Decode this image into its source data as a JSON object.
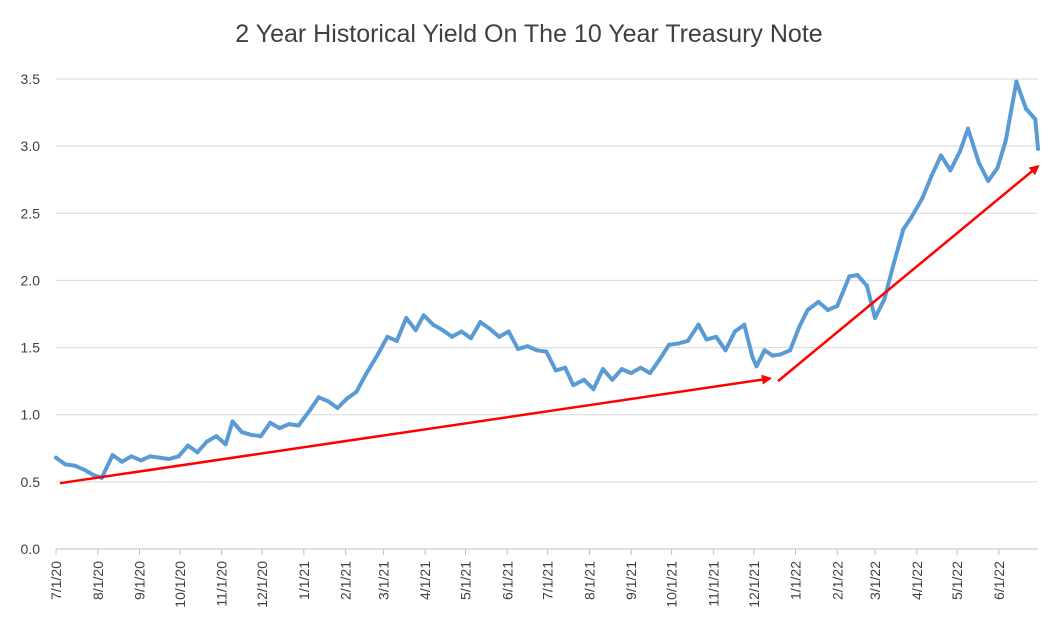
{
  "title": "2 Year Historical Yield On The 10 Year Treasury Note",
  "chart_data": {
    "type": "line",
    "title": "2 Year Historical Yield On The 10 Year Treasury Note",
    "xlabel": "",
    "ylabel": "",
    "ylim": [
      0,
      3.5
    ],
    "yticks": [
      "0.0",
      "0.5",
      "1.0",
      "1.5",
      "2.0",
      "2.5",
      "3.0",
      "3.5"
    ],
    "xticks": [
      "7/1/20",
      "8/1/20",
      "9/1/20",
      "10/1/20",
      "11/1/20",
      "12/1/20",
      "1/1/21",
      "2/1/21",
      "3/1/21",
      "4/1/21",
      "5/1/21",
      "6/1/21",
      "7/1/21",
      "8/1/21",
      "9/1/21",
      "10/1/21",
      "11/1/21",
      "12/1/21",
      "1/1/22",
      "2/1/22",
      "3/1/22",
      "4/1/22",
      "5/1/22",
      "6/1/22"
    ],
    "grid": true,
    "series": [
      {
        "color": "#5b9bd5",
        "x": [
          "2020-07-01",
          "2020-07-08",
          "2020-07-15",
          "2020-07-22",
          "2020-07-29",
          "2020-08-04",
          "2020-08-12",
          "2020-08-19",
          "2020-08-26",
          "2020-09-02",
          "2020-09-09",
          "2020-09-16",
          "2020-09-23",
          "2020-09-30",
          "2020-10-07",
          "2020-10-14",
          "2020-10-21",
          "2020-10-28",
          "2020-11-04",
          "2020-11-09",
          "2020-11-16",
          "2020-11-23",
          "2020-11-30",
          "2020-12-07",
          "2020-12-14",
          "2020-12-21",
          "2020-12-28",
          "2021-01-06",
          "2021-01-12",
          "2021-01-19",
          "2021-01-26",
          "2021-02-02",
          "2021-02-09",
          "2021-02-16",
          "2021-02-25",
          "2021-03-04",
          "2021-03-11",
          "2021-03-18",
          "2021-03-25",
          "2021-03-31",
          "2021-04-07",
          "2021-04-14",
          "2021-04-21",
          "2021-04-28",
          "2021-05-05",
          "2021-05-12",
          "2021-05-19",
          "2021-05-26",
          "2021-06-02",
          "2021-06-09",
          "2021-06-16",
          "2021-06-23",
          "2021-06-30",
          "2021-07-07",
          "2021-07-14",
          "2021-07-20",
          "2021-07-28",
          "2021-08-04",
          "2021-08-11",
          "2021-08-18",
          "2021-08-25",
          "2021-09-01",
          "2021-09-08",
          "2021-09-15",
          "2021-09-22",
          "2021-09-29",
          "2021-10-06",
          "2021-10-13",
          "2021-10-21",
          "2021-10-27",
          "2021-11-03",
          "2021-11-10",
          "2021-11-17",
          "2021-11-24",
          "2021-11-30",
          "2021-12-03",
          "2021-12-09",
          "2021-12-15",
          "2021-12-21",
          "2021-12-28",
          "2022-01-04",
          "2022-01-10",
          "2022-01-18",
          "2022-01-25",
          "2022-02-01",
          "2022-02-10",
          "2022-02-16",
          "2022-02-23",
          "2022-03-01",
          "2022-03-08",
          "2022-03-15",
          "2022-03-22",
          "2022-03-28",
          "2022-04-05",
          "2022-04-12",
          "2022-04-19",
          "2022-04-26",
          "2022-05-03",
          "2022-05-09",
          "2022-05-17",
          "2022-05-24",
          "2022-05-31",
          "2022-06-06",
          "2022-06-14",
          "2022-06-21",
          "2022-06-28",
          "2022-06-30"
        ],
        "y": [
          0.68,
          0.63,
          0.62,
          0.59,
          0.55,
          0.53,
          0.7,
          0.65,
          0.69,
          0.66,
          0.69,
          0.68,
          0.67,
          0.69,
          0.77,
          0.72,
          0.8,
          0.84,
          0.78,
          0.95,
          0.87,
          0.85,
          0.84,
          0.94,
          0.9,
          0.93,
          0.92,
          1.04,
          1.13,
          1.1,
          1.05,
          1.12,
          1.17,
          1.3,
          1.45,
          1.58,
          1.55,
          1.72,
          1.63,
          1.74,
          1.67,
          1.63,
          1.58,
          1.62,
          1.57,
          1.69,
          1.64,
          1.58,
          1.62,
          1.49,
          1.51,
          1.48,
          1.47,
          1.33,
          1.35,
          1.22,
          1.26,
          1.19,
          1.34,
          1.26,
          1.34,
          1.31,
          1.35,
          1.31,
          1.41,
          1.52,
          1.53,
          1.55,
          1.67,
          1.56,
          1.58,
          1.48,
          1.62,
          1.67,
          1.43,
          1.36,
          1.48,
          1.44,
          1.45,
          1.48,
          1.66,
          1.78,
          1.84,
          1.78,
          1.81,
          2.03,
          2.04,
          1.96,
          1.72,
          1.86,
          2.13,
          2.38,
          2.47,
          2.61,
          2.78,
          2.93,
          2.82,
          2.96,
          3.13,
          2.88,
          2.74,
          2.84,
          3.04,
          3.48,
          3.28,
          3.2,
          2.98
        ]
      }
    ],
    "annotations": [
      {
        "type": "arrow",
        "color": "#ff0000",
        "from": [
          "2020-07-04",
          0.49
        ],
        "to": [
          "2021-12-13",
          1.27
        ]
      },
      {
        "type": "arrow",
        "color": "#ff0000",
        "from": [
          "2021-12-19",
          1.25
        ],
        "to": [
          "2022-06-30",
          2.85
        ]
      }
    ]
  }
}
